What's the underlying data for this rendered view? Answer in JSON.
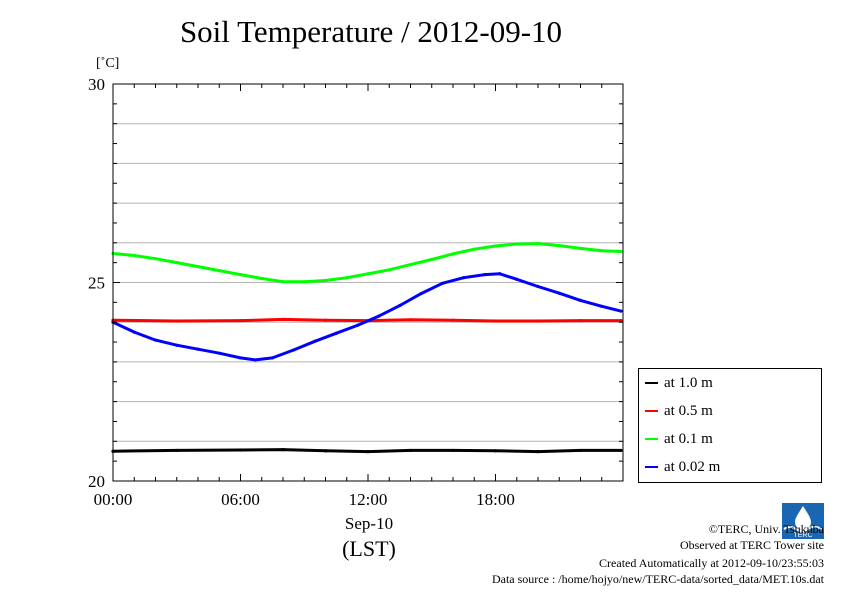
{
  "chart_data": {
    "type": "line",
    "title": "Soil Temperature / 2012-09-10",
    "ylabel": "[˚C]",
    "xlabel": "Sep-10",
    "xlabel2": "(LST)",
    "ylim": [
      20,
      30
    ],
    "xlim": [
      0,
      24
    ],
    "grid": true,
    "y_ticks": [
      "20",
      "25",
      "30"
    ],
    "x_ticks": [
      {
        "value": 0,
        "label": "00:00"
      },
      {
        "value": 6,
        "label": "06:00"
      },
      {
        "value": 12,
        "label": "12:00"
      },
      {
        "value": 18,
        "label": "18:00"
      }
    ],
    "legend_position": "right",
    "series": [
      {
        "name": "at 1.0 m",
        "color": "#000000",
        "x": [
          0,
          3,
          6,
          8,
          10,
          12,
          14,
          16,
          18,
          20,
          22,
          23.9
        ],
        "values": [
          20.75,
          20.77,
          20.78,
          20.79,
          20.76,
          20.74,
          20.77,
          20.77,
          20.76,
          20.74,
          20.77,
          20.77
        ]
      },
      {
        "name": "at 0.5 m",
        "color": "#ff0000",
        "x": [
          0,
          3,
          6,
          8,
          10,
          12,
          14,
          16,
          18,
          20,
          22,
          23.9
        ],
        "values": [
          24.05,
          24.03,
          24.04,
          24.07,
          24.05,
          24.04,
          24.06,
          24.05,
          24.03,
          24.03,
          24.04,
          24.04
        ]
      },
      {
        "name": "at 0.1 m",
        "color": "#00ff00",
        "x": [
          0,
          1,
          2,
          3,
          4,
          5,
          6,
          7,
          8,
          9,
          10,
          11,
          12,
          13,
          14,
          15,
          16,
          17,
          18,
          19,
          20,
          21,
          22,
          23,
          23.9
        ],
        "values": [
          25.73,
          25.68,
          25.6,
          25.5,
          25.4,
          25.3,
          25.2,
          25.1,
          25.02,
          25.02,
          25.05,
          25.12,
          25.22,
          25.32,
          25.45,
          25.58,
          25.72,
          25.84,
          25.92,
          25.97,
          25.98,
          25.93,
          25.86,
          25.8,
          25.78
        ]
      },
      {
        "name": "at 0.02 m",
        "color": "#0000ff",
        "x": [
          0,
          1,
          2,
          3,
          4,
          5,
          6,
          6.7,
          7.5,
          8.5,
          9.5,
          10.5,
          11.5,
          12.5,
          13.5,
          14.5,
          15.5,
          16.5,
          17.5,
          18.2,
          19,
          20,
          21,
          22,
          23,
          23.9
        ],
        "values": [
          24.0,
          23.75,
          23.55,
          23.42,
          23.32,
          23.22,
          23.1,
          23.05,
          23.1,
          23.3,
          23.52,
          23.72,
          23.92,
          24.15,
          24.42,
          24.72,
          24.98,
          25.12,
          25.2,
          25.22,
          25.08,
          24.9,
          24.73,
          24.55,
          24.4,
          24.28
        ]
      }
    ]
  },
  "credits": {
    "copyright": "©TERC, Univ. Tsukuba",
    "site": "Observed at TERC Tower site",
    "created": "Created Automatically at 2012-09-10/23:55:03",
    "source": "Data source : /home/hojyo/new/TERC-data/sorted_data/MET.10s.dat",
    "logo_text": "TERC"
  }
}
